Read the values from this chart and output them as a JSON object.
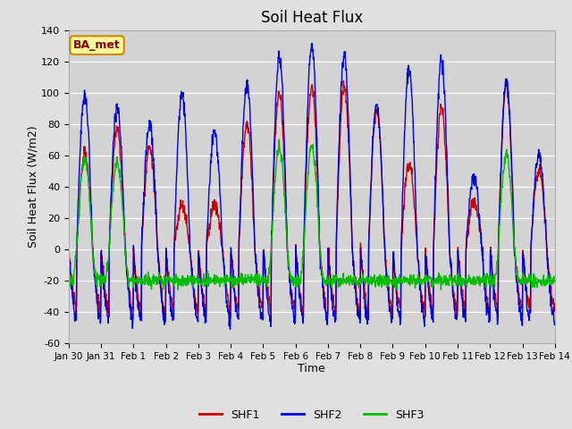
{
  "title": "Soil Heat Flux",
  "xlabel": "Time",
  "ylabel": "Soil Heat Flux (W/m2)",
  "ylim": [
    -60,
    140
  ],
  "yticks": [
    -60,
    -40,
    -20,
    0,
    20,
    40,
    60,
    80,
    100,
    120,
    140
  ],
  "colors": {
    "SHF1": "#cc0000",
    "SHF2": "#0000dd",
    "SHF3": "#00bb00"
  },
  "linewidth": 1.0,
  "bg_color": "#e0e0e0",
  "plot_bg_color": "#d3d3d3",
  "annotation_text": "BA_met",
  "annotation_bg": "#ffff99",
  "annotation_border": "#cc8800",
  "annotation_text_color": "#880000",
  "tick_labels": [
    "Jan 30",
    "Jan 31",
    "Feb 1",
    "Feb 2",
    "Feb 3",
    "Feb 4",
    "Feb 5",
    "Feb 6",
    "Feb 7",
    "Feb 8",
    "Feb 9",
    "Feb 10",
    "Feb 11",
    "Feb 12",
    "Feb 13",
    "Feb 14"
  ],
  "n_days": 15,
  "points_per_day": 96,
  "day_peaks_shf1": [
    60,
    76,
    65,
    28,
    28,
    80,
    100,
    103,
    105,
    90,
    55,
    90,
    30,
    105,
    50
  ],
  "day_peaks_shf2": [
    98,
    91,
    80,
    99,
    75,
    105,
    122,
    130,
    123,
    92,
    115,
    120,
    47,
    107,
    60
  ],
  "day_peaks_shf3": [
    57,
    55,
    0,
    0,
    0,
    0,
    65,
    65,
    0,
    0,
    0,
    0,
    0,
    60,
    0
  ],
  "night_shf1": 38,
  "night_shf2": 45,
  "night_shf3": 25
}
